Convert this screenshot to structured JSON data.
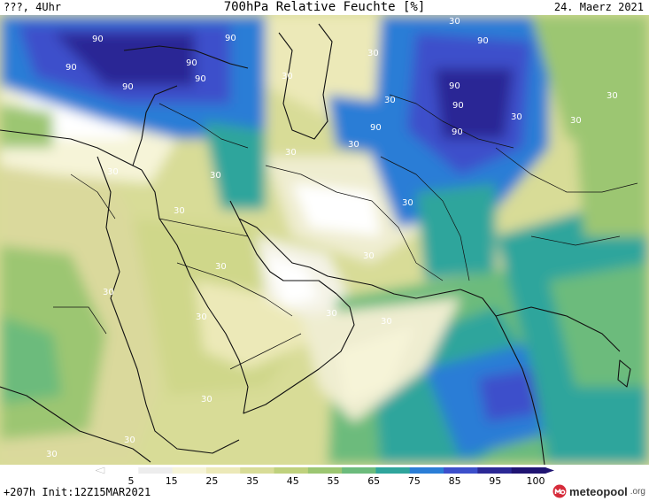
{
  "header": {
    "left": "???, 4Uhr",
    "title": "700hPa Relative Feuchte [%]",
    "date": "24. Maerz 2021"
  },
  "footer": {
    "run_info": "+207h Init:12Z15MAR2021",
    "brand_name": "meteopool",
    "brand_tld": ".org"
  },
  "legend": {
    "ticks": [
      "5",
      "15",
      "25",
      "35",
      "45",
      "55",
      "65",
      "75",
      "85",
      "95",
      "100"
    ],
    "colors": [
      "#ffffff",
      "#ededed",
      "#f6f4d8",
      "#ece9b8",
      "#d8dc97",
      "#bfd17d",
      "#9cc672",
      "#6cbb7c",
      "#2fa59c",
      "#2a7dd6",
      "#3c4fcb",
      "#2b2895",
      "#1f1472"
    ]
  },
  "map": {
    "contour_labels": [
      "90",
      "90",
      "90",
      "90",
      "90",
      "90",
      "90",
      "90",
      "90",
      "90",
      "90",
      "30",
      "30",
      "30",
      "30",
      "30",
      "30",
      "30",
      "30",
      "30",
      "30",
      "30",
      "30",
      "30",
      "30",
      "30",
      "30",
      "30",
      "30",
      "30",
      "30",
      "30",
      "30"
    ]
  }
}
